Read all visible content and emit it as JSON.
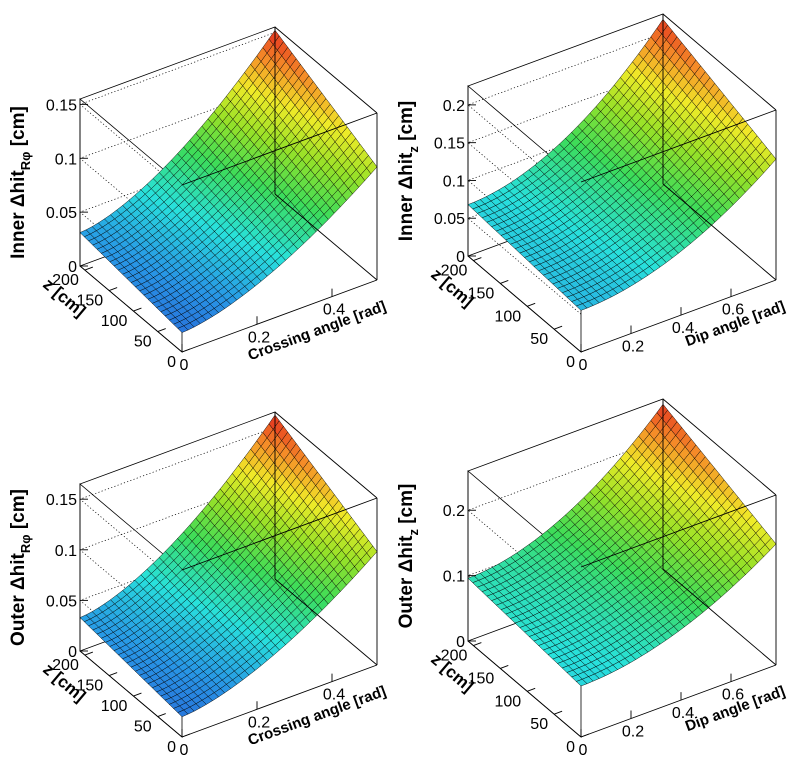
{
  "chart_data": [
    {
      "type": "surface",
      "xlabel": "Crossing angle [rad]",
      "ylabel": "z [cm]",
      "zlabel": {
        "prefix": "Inner Δhit",
        "sub": "Rφ",
        "suffix": " [cm]"
      },
      "xlim": [
        0,
        0.52
      ],
      "ylim": [
        0,
        210
      ],
      "zlim": [
        0,
        0.155
      ],
      "xticks": [
        "0",
        "0.2",
        "0.4"
      ],
      "xtick_values": [
        0,
        0.2,
        0.4
      ],
      "yticks": [
        "0",
        "50",
        "100",
        "150",
        "200"
      ],
      "ytick_values": [
        0,
        50,
        100,
        150,
        200
      ],
      "zticks": [
        "0",
        "0.05",
        "0.1",
        "0.15"
      ],
      "ztick_values": [
        0,
        0.05,
        0.1,
        0.15
      ],
      "surface": {
        "x_range": [
          0,
          0.52
        ],
        "y_range": [
          0,
          210
        ],
        "corners": {
          "x0_y0": 0.018,
          "xmax_y0": 0.105,
          "x0_ymax": 0.031,
          "xmax_ymax": 0.152
        },
        "x_curvature": 1.6,
        "grid": [
          32,
          24
        ]
      }
    },
    {
      "type": "surface",
      "xlabel": "Dip angle [rad]",
      "ylabel": "z [cm]",
      "zlabel": {
        "prefix": "Inner Δhit",
        "sub": "z",
        "suffix": " [cm]"
      },
      "xlim": [
        0,
        0.78
      ],
      "ylim": [
        0,
        210
      ],
      "zlim": [
        0,
        0.225
      ],
      "xticks": [
        "0",
        "0.2",
        "0.4",
        "0.6"
      ],
      "xtick_values": [
        0,
        0.2,
        0.4,
        0.6
      ],
      "yticks": [
        "0",
        "50",
        "100",
        "150",
        "200"
      ],
      "ytick_values": [
        0,
        50,
        100,
        150,
        200
      ],
      "zticks": [
        "0",
        "0.05",
        "0.1",
        "0.15",
        "0.2"
      ],
      "ztick_values": [
        0,
        0.05,
        0.1,
        0.15,
        0.2
      ],
      "surface": {
        "x_range": [
          0,
          0.78
        ],
        "y_range": [
          0,
          210
        ],
        "corners": {
          "x0_y0": 0.055,
          "xmax_y0": 0.16,
          "x0_ymax": 0.068,
          "xmax_ymax": 0.218
        },
        "x_curvature": 1.9,
        "grid": [
          32,
          24
        ]
      }
    },
    {
      "type": "surface",
      "xlabel": "Crossing angle [rad]",
      "ylabel": "z [cm]",
      "zlabel": {
        "prefix": "Outer Δhit",
        "sub": "Rφ",
        "suffix": " [cm]"
      },
      "xlim": [
        0,
        0.52
      ],
      "ylim": [
        0,
        210
      ],
      "zlim": [
        0,
        0.165
      ],
      "xticks": [
        "0",
        "0.2",
        "0.4"
      ],
      "xtick_values": [
        0,
        0.2,
        0.4
      ],
      "yticks": [
        "0",
        "50",
        "100",
        "150",
        "200"
      ],
      "ytick_values": [
        0,
        50,
        100,
        150,
        200
      ],
      "zticks": [
        "0",
        "0.05",
        "0.1",
        "0.15"
      ],
      "ztick_values": [
        0,
        0.05,
        0.1,
        0.15
      ],
      "surface": {
        "x_range": [
          0,
          0.52
        ],
        "y_range": [
          0,
          210
        ],
        "corners": {
          "x0_y0": 0.02,
          "xmax_y0": 0.112,
          "x0_ymax": 0.033,
          "xmax_ymax": 0.162
        },
        "x_curvature": 1.6,
        "grid": [
          32,
          24
        ]
      }
    },
    {
      "type": "surface",
      "xlabel": "Dip angle [rad]",
      "ylabel": "z [cm]",
      "zlabel": {
        "prefix": "Outer Δhit",
        "sub": "z",
        "suffix": " [cm]"
      },
      "xlim": [
        0,
        0.78
      ],
      "ylim": [
        0,
        210
      ],
      "zlim": [
        0,
        0.26
      ],
      "xticks": [
        "0",
        "0.2",
        "0.4",
        "0.6"
      ],
      "xtick_values": [
        0,
        0.2,
        0.4,
        0.6
      ],
      "yticks": [
        "0",
        "50",
        "100",
        "150",
        "200"
      ],
      "ytick_values": [
        0,
        50,
        100,
        150,
        200
      ],
      "zticks": [
        "0",
        "0.1",
        "0.2"
      ],
      "ztick_values": [
        0,
        0.1,
        0.2
      ],
      "surface": {
        "x_range": [
          0,
          0.78
        ],
        "y_range": [
          0,
          210
        ],
        "corners": {
          "x0_y0": 0.078,
          "xmax_y0": 0.185,
          "x0_ymax": 0.096,
          "xmax_ymax": 0.252
        },
        "x_curvature": 1.9,
        "grid": [
          32,
          24
        ]
      }
    }
  ]
}
